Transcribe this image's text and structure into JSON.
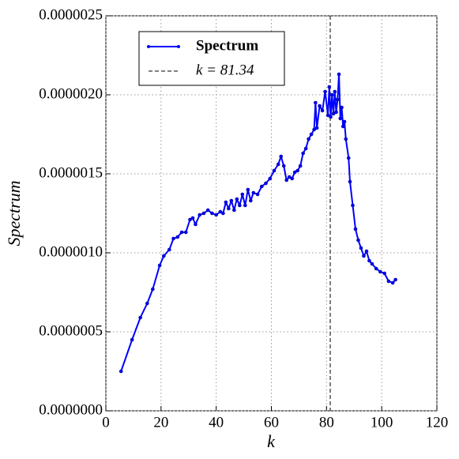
{
  "chart_data": {
    "type": "line",
    "xlabel": "k",
    "ylabel": "Spectrum",
    "xlim": [
      0,
      120
    ],
    "xticks": [
      0,
      20,
      40,
      60,
      80,
      100,
      120
    ],
    "ylim": [
      0,
      2.5e-06
    ],
    "yticks": [
      {
        "value": 0,
        "label": "0.0000000"
      },
      {
        "value": 5e-07,
        "label": "0.0000005"
      },
      {
        "value": 1e-06,
        "label": "0.0000010"
      },
      {
        "value": 1.5e-06,
        "label": "0.0000015"
      },
      {
        "value": 2e-06,
        "label": "0.0000020"
      },
      {
        "value": 2.5e-06,
        "label": "0.0000025"
      }
    ],
    "grid": true,
    "legend": "upper left",
    "x": [
      5.5,
      9.5,
      12.5,
      15,
      17,
      19.5,
      21,
      23,
      24.5,
      26,
      27.5,
      29,
      30.5,
      31.5,
      32.5,
      34,
      35.5,
      37,
      38.5,
      40,
      41.5,
      42.5,
      43.5,
      44.5,
      45.5,
      46.5,
      47.5,
      48.5,
      49.5,
      50.5,
      51.5,
      52.5,
      53.5,
      55,
      56.5,
      58,
      59.5,
      61,
      62.5,
      63.5,
      64.5,
      65.5,
      66.5,
      67.5,
      68.5,
      69.5,
      70.5,
      71.5,
      72.5,
      73.5,
      74.5,
      75.5,
      76,
      76.5,
      77.5,
      78.5,
      79.5,
      80.5,
      81,
      81.5,
      82,
      82.5,
      83,
      83.5,
      84,
      84.5,
      85,
      85.5,
      86,
      86.5,
      87,
      88,
      88.5,
      89.5,
      90.5,
      91.5,
      92.5,
      93.5,
      94.5,
      95.5,
      96.5,
      98,
      99.5,
      101,
      102.5,
      104,
      105
    ],
    "series": [
      {
        "name": "Spectrum",
        "color": "#0000ff",
        "values": [
          2.5e-07,
          4.5e-07,
          5.9e-07,
          6.8e-07,
          7.7e-07,
          9.2e-07,
          9.8e-07,
          1.02e-06,
          1.09e-06,
          1.1e-06,
          1.13e-06,
          1.13e-06,
          1.21e-06,
          1.22e-06,
          1.18e-06,
          1.24e-06,
          1.25e-06,
          1.27e-06,
          1.25e-06,
          1.24e-06,
          1.26e-06,
          1.25e-06,
          1.32e-06,
          1.28e-06,
          1.33e-06,
          1.27e-06,
          1.34e-06,
          1.3e-06,
          1.37e-06,
          1.3e-06,
          1.4e-06,
          1.33e-06,
          1.38e-06,
          1.37e-06,
          1.42e-06,
          1.44e-06,
          1.47e-06,
          1.52e-06,
          1.56e-06,
          1.61e-06,
          1.55e-06,
          1.46e-06,
          1.48e-06,
          1.47e-06,
          1.51e-06,
          1.52e-06,
          1.55e-06,
          1.63e-06,
          1.66e-06,
          1.72e-06,
          1.75e-06,
          1.78e-06,
          1.95e-06,
          1.79e-06,
          1.93e-06,
          1.9e-06,
          2.02e-06,
          1.87e-06,
          2.05e-06,
          1.86e-06,
          2e-06,
          1.88e-06,
          2.02e-06,
          1.89e-06,
          1.97e-06,
          2.13e-06,
          1.85e-06,
          1.92e-06,
          1.8e-06,
          1.83e-06,
          1.72e-06,
          1.6e-06,
          1.45e-06,
          1.3e-06,
          1.15e-06,
          1.08e-06,
          1.03e-06,
          9.8e-07,
          1.01e-06,
          9.5e-07,
          9.3e-07,
          9e-07,
          8.8e-07,
          8.7e-07,
          8.2e-07,
          8.1e-07,
          8.3e-07
        ]
      }
    ],
    "vline": {
      "value": 81.34,
      "label": "k = 81.34",
      "color": "#000000"
    }
  }
}
